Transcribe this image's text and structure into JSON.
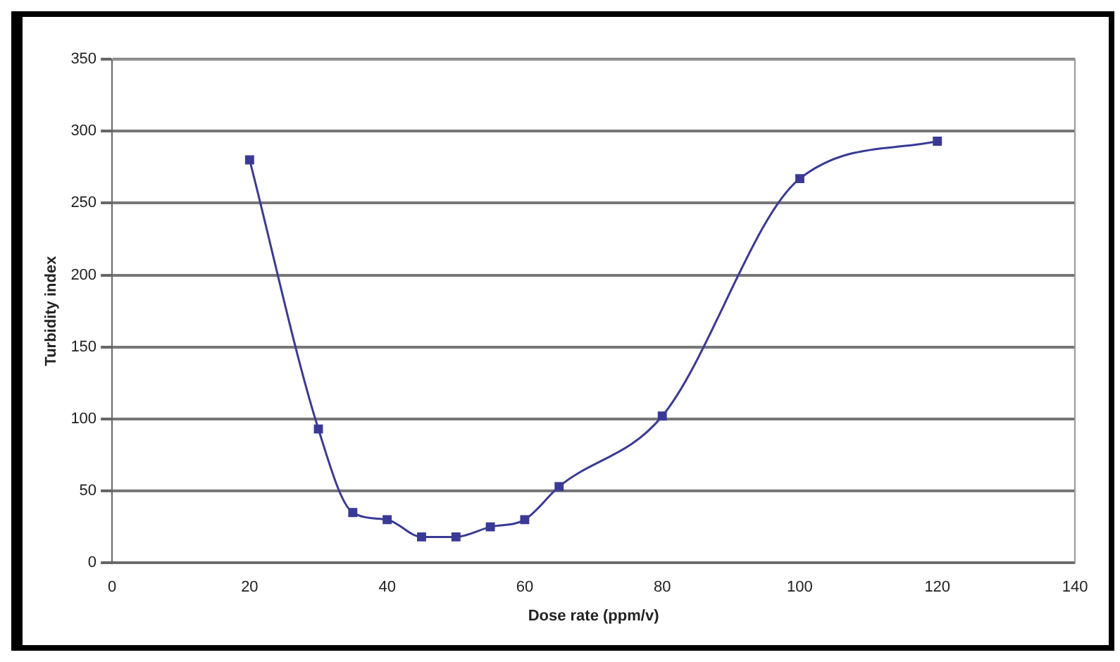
{
  "chart_data": {
    "type": "line",
    "xlabel": "Dose rate (ppm/v)",
    "ylabel": "Turbidity index",
    "x": [
      20,
      30,
      35,
      40,
      45,
      50,
      55,
      60,
      65,
      80,
      100,
      120
    ],
    "series": [
      {
        "color": "#3a3a96",
        "values": [
          280,
          93,
          35,
          30,
          18,
          18,
          25,
          30,
          53,
          102,
          267,
          293
        ]
      }
    ],
    "xlim": [
      0,
      140
    ],
    "xticks": [
      0,
      20,
      40,
      60,
      80,
      100,
      120,
      140
    ],
    "ylim": [
      0,
      350
    ],
    "yticks": [
      0,
      50,
      100,
      150,
      200,
      250,
      300,
      350
    ],
    "grid": "y",
    "legend": false,
    "marker": "square",
    "line_style": "solid"
  }
}
